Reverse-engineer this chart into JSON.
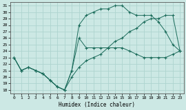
{
  "xlabel": "Humidex (Indice chaleur)",
  "bg_color": "#cce8e4",
  "grid_color": "#aed4cf",
  "line_color": "#1a6b5a",
  "xlim": [
    -0.5,
    23.5
  ],
  "ylim": [
    17.5,
    31.5
  ],
  "yticks": [
    18,
    19,
    20,
    21,
    22,
    23,
    24,
    25,
    26,
    27,
    28,
    29,
    30,
    31
  ],
  "xticks": [
    0,
    1,
    2,
    3,
    4,
    5,
    6,
    7,
    8,
    9,
    10,
    11,
    12,
    13,
    14,
    15,
    16,
    17,
    18,
    19,
    20,
    21,
    22,
    23
  ],
  "line1_x": [
    0,
    1,
    2,
    3,
    4,
    5,
    6,
    7,
    8,
    9,
    10,
    11,
    12,
    13,
    14,
    15,
    16,
    17,
    18,
    19,
    20,
    21,
    22,
    23
  ],
  "line1_y": [
    23,
    21,
    21.5,
    21,
    20.5,
    19.5,
    18.5,
    18,
    21,
    26,
    24.5,
    24.5,
    24.5,
    24.5,
    24.5,
    24.5,
    24,
    23.5,
    23,
    23,
    23,
    23,
    23.5,
    24
  ],
  "line2_x": [
    0,
    1,
    2,
    3,
    4,
    5,
    6,
    7,
    8,
    9,
    10,
    11,
    12,
    13,
    14,
    15,
    16,
    17,
    18,
    19,
    20,
    21,
    22,
    23
  ],
  "line2_y": [
    23,
    21,
    21.5,
    21,
    20.5,
    19.5,
    18.5,
    18,
    21,
    28,
    29.5,
    30,
    30.5,
    30.5,
    31,
    31,
    30,
    29.5,
    29.5,
    29.5,
    28.5,
    27,
    25,
    24
  ],
  "line3_x": [
    0,
    1,
    2,
    3,
    4,
    5,
    6,
    7,
    8,
    9,
    10,
    11,
    12,
    13,
    14,
    15,
    16,
    17,
    18,
    19,
    20,
    21,
    22,
    23
  ],
  "line3_y": [
    23,
    21,
    21.5,
    21,
    20.5,
    19.5,
    18.5,
    18,
    20,
    21.5,
    22.5,
    23,
    23.5,
    24.5,
    25.5,
    26,
    27,
    27.5,
    28.5,
    29,
    29,
    29.5,
    29.5,
    24
  ]
}
